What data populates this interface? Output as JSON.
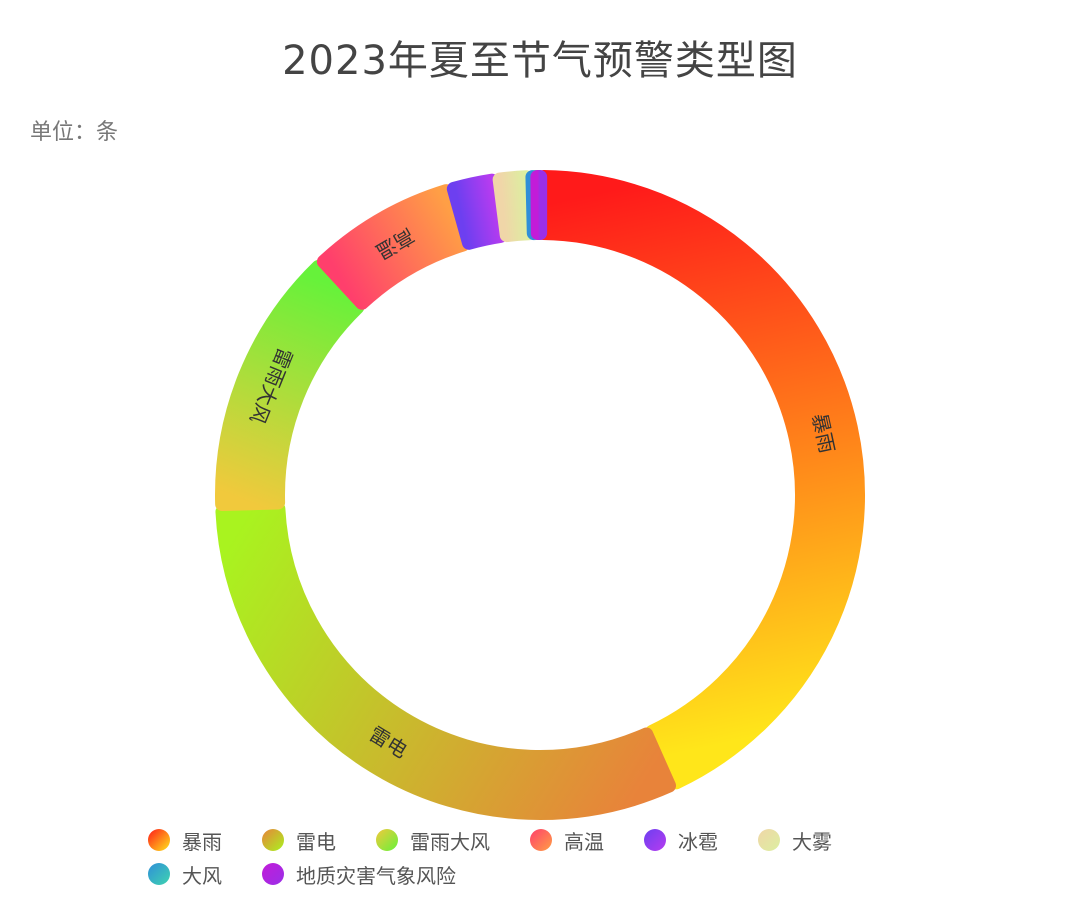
{
  "title": "2023年夏至节气预警类型图",
  "unit": "单位：条",
  "chart_data": {
    "type": "pie",
    "subtype": "donut",
    "title": "2023年夏至节气预警类型图",
    "unit": "单位：条",
    "legend_position": "bottom",
    "series": [
      {
        "name": "暴雨",
        "value": 350,
        "colors": [
          "#ff1a1a",
          "#ffe61a"
        ],
        "label": "暴雨"
      },
      {
        "name": "雷电",
        "value": 253,
        "colors": [
          "#e8833a",
          "#a9f31f"
        ],
        "label": "雷电"
      },
      {
        "name": "雷雨大风",
        "value": 110,
        "colors": [
          "#f1c93c",
          "#66f23a"
        ],
        "label": "雷雨大风"
      },
      {
        "name": "高温",
        "value": 61,
        "colors": [
          "#ff3f6c",
          "#ff9f45"
        ],
        "label": "高温"
      },
      {
        "name": "冰雹",
        "value": 19,
        "colors": [
          "#6d3ff0",
          "#b63cf0"
        ],
        "label": ""
      },
      {
        "name": "大雾",
        "value": 14,
        "colors": [
          "#f0d6a8",
          "#dcefa0"
        ],
        "label": ""
      },
      {
        "name": "大风",
        "value": 3,
        "colors": [
          "#2f8fd8",
          "#3fd4b0"
        ],
        "label": ""
      },
      {
        "name": "地质灾害气象风险",
        "value": 1,
        "colors": [
          "#c21cd8",
          "#9a2fe8"
        ],
        "label": ""
      }
    ]
  }
}
